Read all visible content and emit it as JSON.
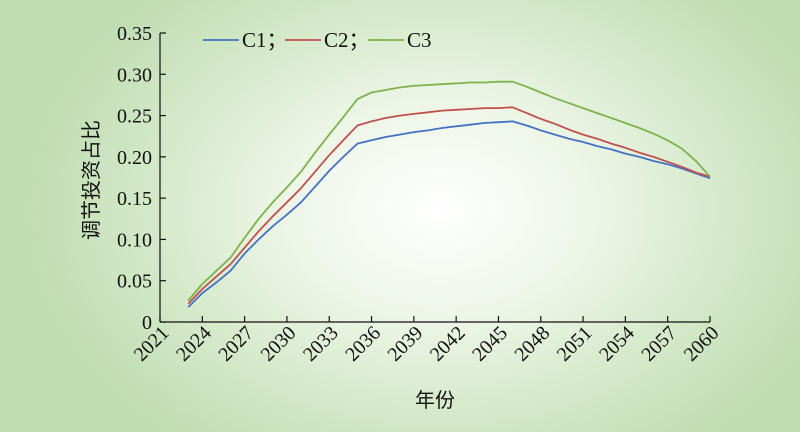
{
  "chart_data": {
    "type": "line",
    "title": "",
    "xlabel": "年份",
    "ylabel": "调节投资占比",
    "x_ticks": [
      "2021",
      "2024",
      "2027",
      "2030",
      "2033",
      "2036",
      "2039",
      "2042",
      "2045",
      "2048",
      "2051",
      "2054",
      "2057",
      "2060"
    ],
    "xlim": [
      2021,
      2060
    ],
    "ylim": [
      0,
      0.35
    ],
    "y_ticks": [
      {
        "value": 0,
        "label": "0"
      },
      {
        "value": 0.05,
        "label": "0.05"
      },
      {
        "value": 0.1,
        "label": "0.10"
      },
      {
        "value": 0.15,
        "label": "0.15"
      },
      {
        "value": 0.2,
        "label": "0.20"
      },
      {
        "value": 0.25,
        "label": "0.25"
      },
      {
        "value": 0.3,
        "label": "0.30"
      },
      {
        "value": 0.35,
        "label": "0.35"
      }
    ],
    "legend_position": "top-left",
    "legend_labels": [
      "C1；",
      "C2；",
      "C3"
    ],
    "grid": false,
    "series": [
      {
        "name": "C1",
        "color": "#4472c4",
        "x": [
          2023,
          2024,
          2025,
          2026,
          2027,
          2028,
          2029,
          2030,
          2031,
          2032,
          2033,
          2034,
          2035,
          2036,
          2037,
          2038,
          2039,
          2040,
          2041,
          2042,
          2043,
          2044,
          2045,
          2046,
          2047,
          2048,
          2049,
          2050,
          2051,
          2052,
          2053,
          2054,
          2055,
          2056,
          2057,
          2058,
          2059,
          2060
        ],
        "values": [
          0.018,
          0.035,
          0.048,
          0.062,
          0.083,
          0.1,
          0.116,
          0.13,
          0.145,
          0.164,
          0.183,
          0.2,
          0.216,
          0.22,
          0.224,
          0.227,
          0.23,
          0.232,
          0.235,
          0.237,
          0.239,
          0.241,
          0.242,
          0.243,
          0.238,
          0.232,
          0.227,
          0.222,
          0.218,
          0.213,
          0.209,
          0.204,
          0.2,
          0.195,
          0.191,
          0.186,
          0.18,
          0.174
        ]
      },
      {
        "name": "C2",
        "color": "#c0504d",
        "x": [
          2023,
          2024,
          2025,
          2026,
          2027,
          2028,
          2029,
          2030,
          2031,
          2032,
          2033,
          2034,
          2035,
          2036,
          2037,
          2038,
          2039,
          2040,
          2041,
          2042,
          2043,
          2044,
          2045,
          2046,
          2047,
          2048,
          2049,
          2050,
          2051,
          2052,
          2053,
          2054,
          2055,
          2056,
          2057,
          2058,
          2059,
          2060
        ],
        "values": [
          0.022,
          0.04,
          0.055,
          0.07,
          0.09,
          0.11,
          0.128,
          0.145,
          0.162,
          0.182,
          0.202,
          0.22,
          0.238,
          0.243,
          0.247,
          0.25,
          0.252,
          0.254,
          0.256,
          0.257,
          0.258,
          0.259,
          0.259,
          0.26,
          0.253,
          0.246,
          0.24,
          0.233,
          0.227,
          0.222,
          0.216,
          0.211,
          0.205,
          0.2,
          0.194,
          0.188,
          0.181,
          0.176
        ]
      },
      {
        "name": "C3",
        "color": "#7fb24a",
        "x": [
          2023,
          2024,
          2025,
          2026,
          2027,
          2028,
          2029,
          2030,
          2031,
          2032,
          2033,
          2034,
          2035,
          2036,
          2037,
          2038,
          2039,
          2040,
          2041,
          2042,
          2043,
          2044,
          2045,
          2046,
          2047,
          2048,
          2049,
          2050,
          2051,
          2052,
          2053,
          2054,
          2055,
          2056,
          2057,
          2058,
          2059,
          2060
        ],
        "values": [
          0.026,
          0.046,
          0.062,
          0.078,
          0.102,
          0.125,
          0.145,
          0.163,
          0.182,
          0.205,
          0.227,
          0.248,
          0.27,
          0.278,
          0.281,
          0.284,
          0.286,
          0.287,
          0.288,
          0.289,
          0.29,
          0.29,
          0.291,
          0.291,
          0.285,
          0.278,
          0.271,
          0.265,
          0.259,
          0.253,
          0.247,
          0.241,
          0.235,
          0.228,
          0.22,
          0.21,
          0.195,
          0.176
        ]
      }
    ]
  }
}
